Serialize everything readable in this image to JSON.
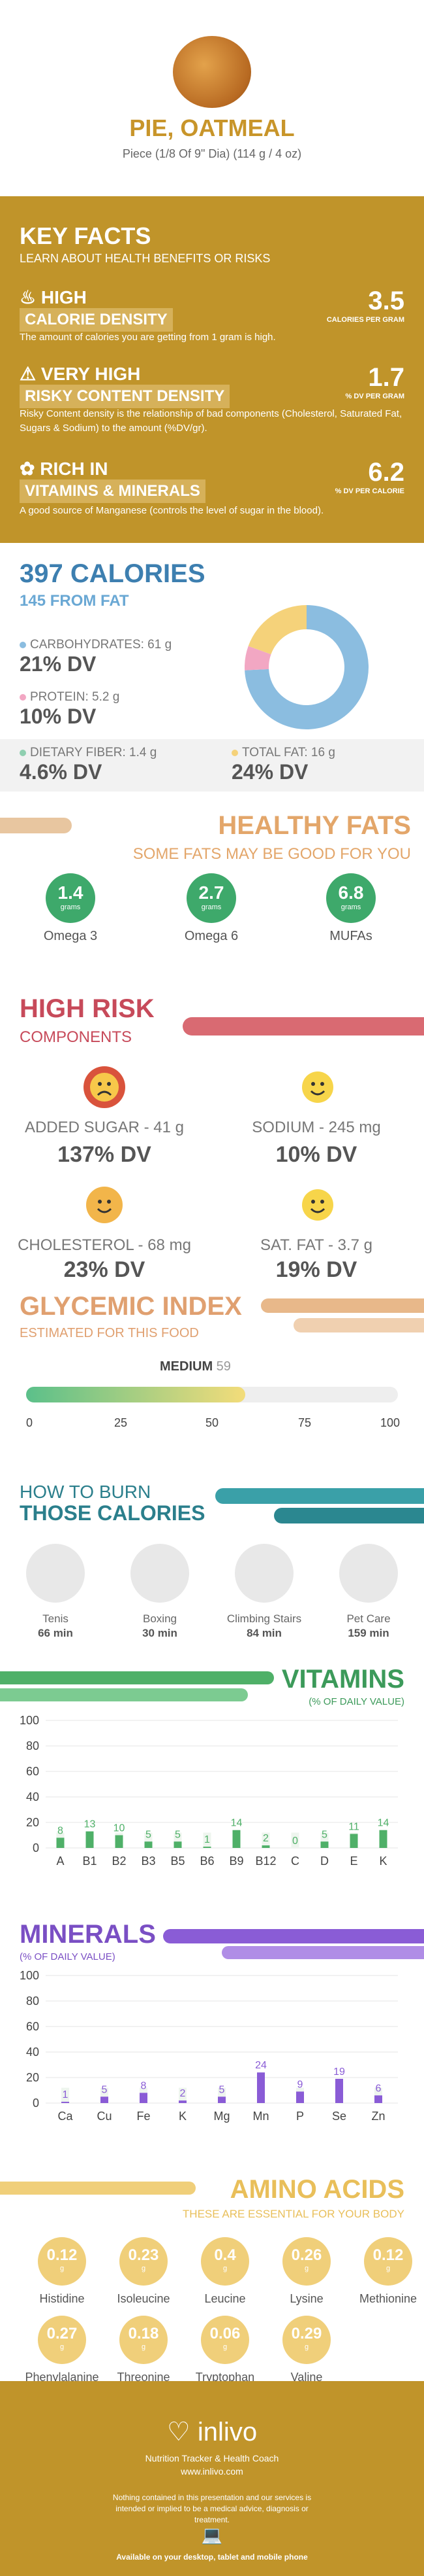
{
  "header": {
    "title": "PIE, OATMEAL",
    "subtitle": "Piece (1/8 Of 9\" Dia) (114 g / 4 oz)"
  },
  "facts": {
    "title": "KEY FACTS",
    "subtitle": "LEARN ABOUT HEALTH BENEFITS OR RISKS",
    "items": [
      {
        "badge_top": "HIGH",
        "badge_bottom": "CALORIE DENSITY",
        "value": "3.5",
        "unit": "CALORIES PER GRAM",
        "desc": "The amount of calories you are getting from 1 gram is high.",
        "icon": "fire-icon"
      },
      {
        "badge_top": "VERY HIGH",
        "badge_bottom": "RISKY CONTENT DENSITY",
        "value": "1.7",
        "unit": "% DV PER GRAM",
        "desc": "Risky Content density is the relationship of bad components (Cholesterol, Saturated Fat, Sugars & Sodium) to the amount (%DV/gr).",
        "icon": "warning-icon"
      },
      {
        "badge_top": "RICH IN",
        "badge_bottom": "VITAMINS & MINERALS",
        "value": "6.2",
        "unit": "% DV PER CALORIE",
        "desc": "A good source of Manganese (controls the level of sugar in the blood).",
        "icon": "leaf-icon"
      }
    ]
  },
  "calories": {
    "title": "397 CALORIES",
    "subtitle": "145 FROM FAT",
    "macros": [
      {
        "label": "CARBOHYDRATES: 61 g",
        "dv": "21% DV",
        "color": "#8bbde0"
      },
      {
        "label": "PROTEIN: 5.2 g",
        "dv": "10% DV",
        "color": "#f2a7c3"
      },
      {
        "label": "DIETARY FIBER: 1.4 g",
        "dv": "4.6% DV",
        "color": "#8fcfb0"
      },
      {
        "label": "TOTAL FAT: 16 g",
        "dv": "24% DV",
        "color": "#f5d27a"
      }
    ]
  },
  "chart_data": [
    {
      "type": "pie",
      "labels": [
        "Carbohydrates",
        "Protein",
        "Fat"
      ],
      "values": [
        61,
        5.2,
        16
      ],
      "colors": [
        "#8bbde0",
        "#f2a7c3",
        "#f5d27a"
      ]
    },
    {
      "type": "bar",
      "title": "VITAMINS",
      "subtitle": "(% OF DAILY VALUE)",
      "categories": [
        "A",
        "B1",
        "B2",
        "B3",
        "B5",
        "B6",
        "B9",
        "B12",
        "C",
        "D",
        "E",
        "K"
      ],
      "values": [
        8,
        13,
        10,
        5,
        5,
        1,
        14,
        2,
        0,
        5,
        11,
        14
      ],
      "ylim": [
        0,
        100
      ],
      "yticks": [
        0,
        20,
        40,
        60,
        80,
        100
      ],
      "color": "#4fb068"
    },
    {
      "type": "bar",
      "title": "MINERALS",
      "subtitle": "(% OF DAILY VALUE)",
      "categories": [
        "Ca",
        "Cu",
        "Fe",
        "K",
        "Mg",
        "Mn",
        "P",
        "Se",
        "Zn"
      ],
      "values": [
        1,
        5,
        8,
        2,
        5,
        24,
        9,
        19,
        6
      ],
      "ylim": [
        0,
        100
      ],
      "yticks": [
        0,
        20,
        40,
        60,
        80,
        100
      ],
      "color": "#8a5cd6"
    }
  ],
  "fats": {
    "title": "HEALTHY FATS",
    "subtitle": "SOME FATS MAY BE GOOD FOR YOU",
    "unit": "grams",
    "items": [
      {
        "value": "1.4",
        "label": "Omega 3"
      },
      {
        "value": "2.7",
        "label": "Omega 6"
      },
      {
        "value": "6.8",
        "label": "MUFAs"
      }
    ]
  },
  "risk": {
    "title": "HIGH RISK",
    "subtitle": "COMPONENTS",
    "items": [
      {
        "label": "ADDED SUGAR - 41 g",
        "dv": "137% DV",
        "face": "sad-face-icon",
        "color": "#d9533c"
      },
      {
        "label": "SODIUM - 245 mg",
        "dv": "10% DV",
        "face": "happy-face-icon",
        "color": "#f7d54a"
      },
      {
        "label": "CHOLESTEROL - 68 mg",
        "dv": "23% DV",
        "face": "happy-face-icon",
        "color": "#f2b54a"
      },
      {
        "label": "SAT. FAT - 3.7 g",
        "dv": "19% DV",
        "face": "happy-face-icon",
        "color": "#f7d54a"
      }
    ]
  },
  "glycemic": {
    "title": "GLYCEMIC INDEX",
    "subtitle": "ESTIMATED FOR THIS FOOD",
    "level": "MEDIUM",
    "value": "59",
    "fraction": 0.59,
    "ticks": [
      "0",
      "25",
      "50",
      "75",
      "100"
    ]
  },
  "burn": {
    "title_top": "HOW TO BURN",
    "title_bottom": "THOSE CALORIES",
    "items": [
      {
        "label": "Tenis",
        "time": "66 min"
      },
      {
        "label": "Boxing",
        "time": "30 min"
      },
      {
        "label": "Climbing Stairs",
        "time": "84 min"
      },
      {
        "label": "Pet Care",
        "time": "159 min"
      }
    ]
  },
  "amino": {
    "title": "AMINO ACIDS",
    "subtitle": "THESE ARE ESSENTIAL FOR YOUR BODY",
    "unit": "g",
    "items": [
      {
        "value": "0.12",
        "label": "Histidine"
      },
      {
        "value": "0.23",
        "label": "Isoleucine"
      },
      {
        "value": "0.4",
        "label": "Leucine"
      },
      {
        "value": "0.26",
        "label": "Lysine"
      },
      {
        "value": "0.12",
        "label": "Methionine"
      },
      {
        "value": "0.27",
        "label": "Phenylalanine"
      },
      {
        "value": "0.18",
        "label": "Threonine"
      },
      {
        "value": "0.06",
        "label": "Tryptophan"
      },
      {
        "value": "0.29",
        "label": "Valine"
      }
    ]
  },
  "footer": {
    "brand": "inlivo",
    "tagline": "Nutrition Tracker & Health Coach",
    "url": "www.inlivo.com",
    "disclaimer": "Nothing contained in this presentation and our services is intended or implied to be a medical advice, diagnosis or treatment.",
    "available": "Available on your desktop, tablet and mobile phone"
  }
}
